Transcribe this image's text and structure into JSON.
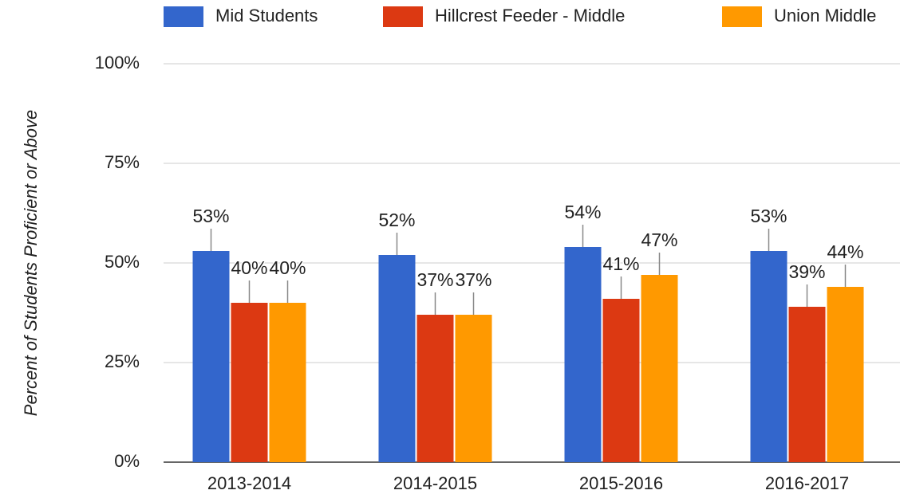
{
  "chart_data": {
    "type": "bar",
    "y_label": "Percent of Students Proficient or Above",
    "categories": [
      "2013-2014",
      "2014-2015",
      "2015-2016",
      "2016-2017"
    ],
    "series": [
      {
        "name": "Mid Students",
        "color": "#3366cc",
        "values": [
          53,
          52,
          54,
          53
        ],
        "value_labels": [
          "53%",
          "52%",
          "54%",
          "53%"
        ]
      },
      {
        "name": "Hillcrest Feeder - Middle",
        "color": "#dc3912",
        "values": [
          40,
          37,
          41,
          39
        ],
        "value_labels": [
          "40%",
          "37%",
          "41%",
          "39%"
        ]
      },
      {
        "name": "Union Middle",
        "color": "#ff9900",
        "values": [
          40,
          37,
          47,
          44
        ],
        "value_labels": [
          "40%",
          "37%",
          "47%",
          "44%"
        ]
      }
    ],
    "ylim": [
      0,
      100
    ],
    "yticks": [
      {
        "value": 0,
        "label": "0%"
      },
      {
        "value": 25,
        "label": "25%"
      },
      {
        "value": 50,
        "label": "50%"
      },
      {
        "value": 75,
        "label": "75%"
      },
      {
        "value": 100,
        "label": "100%"
      }
    ],
    "grid": true
  }
}
